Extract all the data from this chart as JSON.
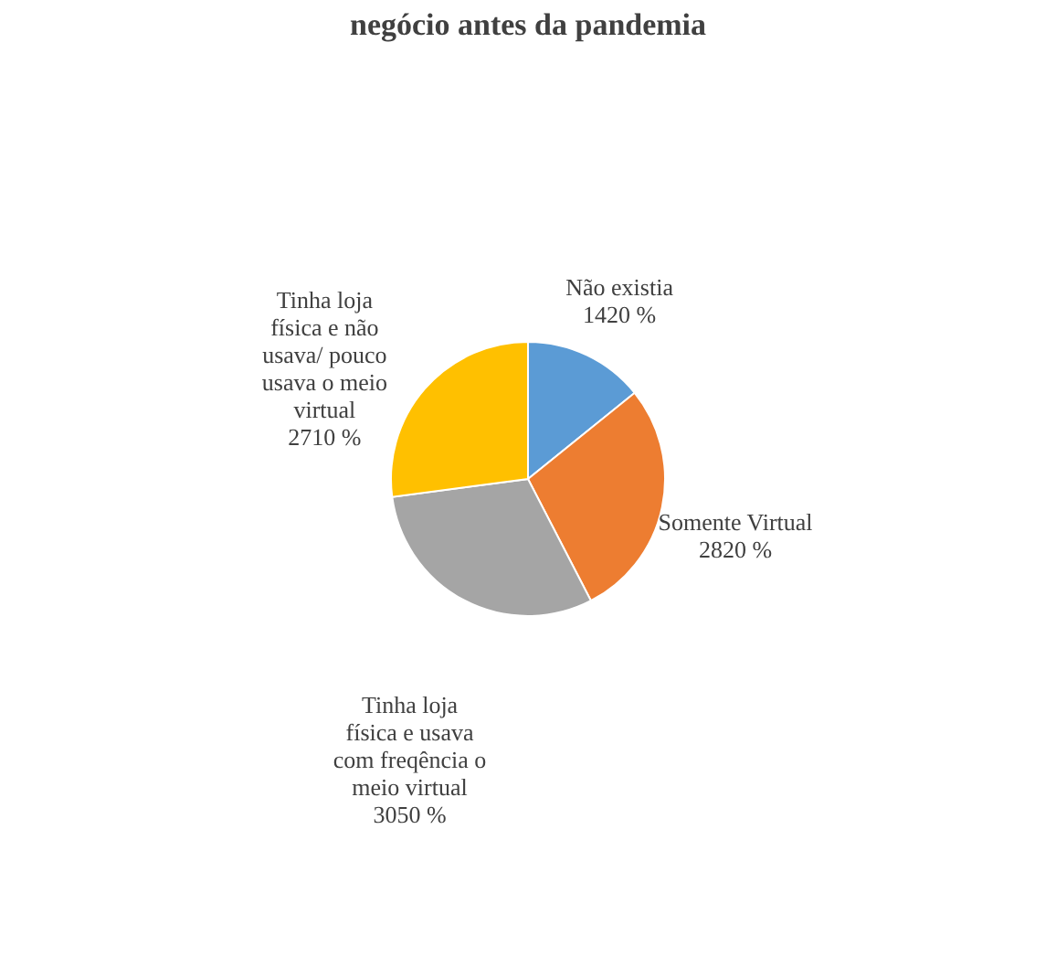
{
  "chart_data": {
    "type": "pie",
    "title": "negócio antes da pandemia",
    "categories": [
      "Não existia",
      "Somente Virtual",
      "Tinha loja física e usava com freqência o meio virtual",
      "Tinha loja física e não usava/ pouco usava o meio virtual"
    ],
    "values": [
      1420,
      2820,
      3050,
      2710
    ],
    "value_labels": [
      "1420 %",
      "2820 %",
      "3050 %",
      "2710 %"
    ],
    "colors": [
      "#5b9bd5",
      "#ed7d31",
      "#a5a5a5",
      "#ffc000"
    ],
    "legend": false
  }
}
